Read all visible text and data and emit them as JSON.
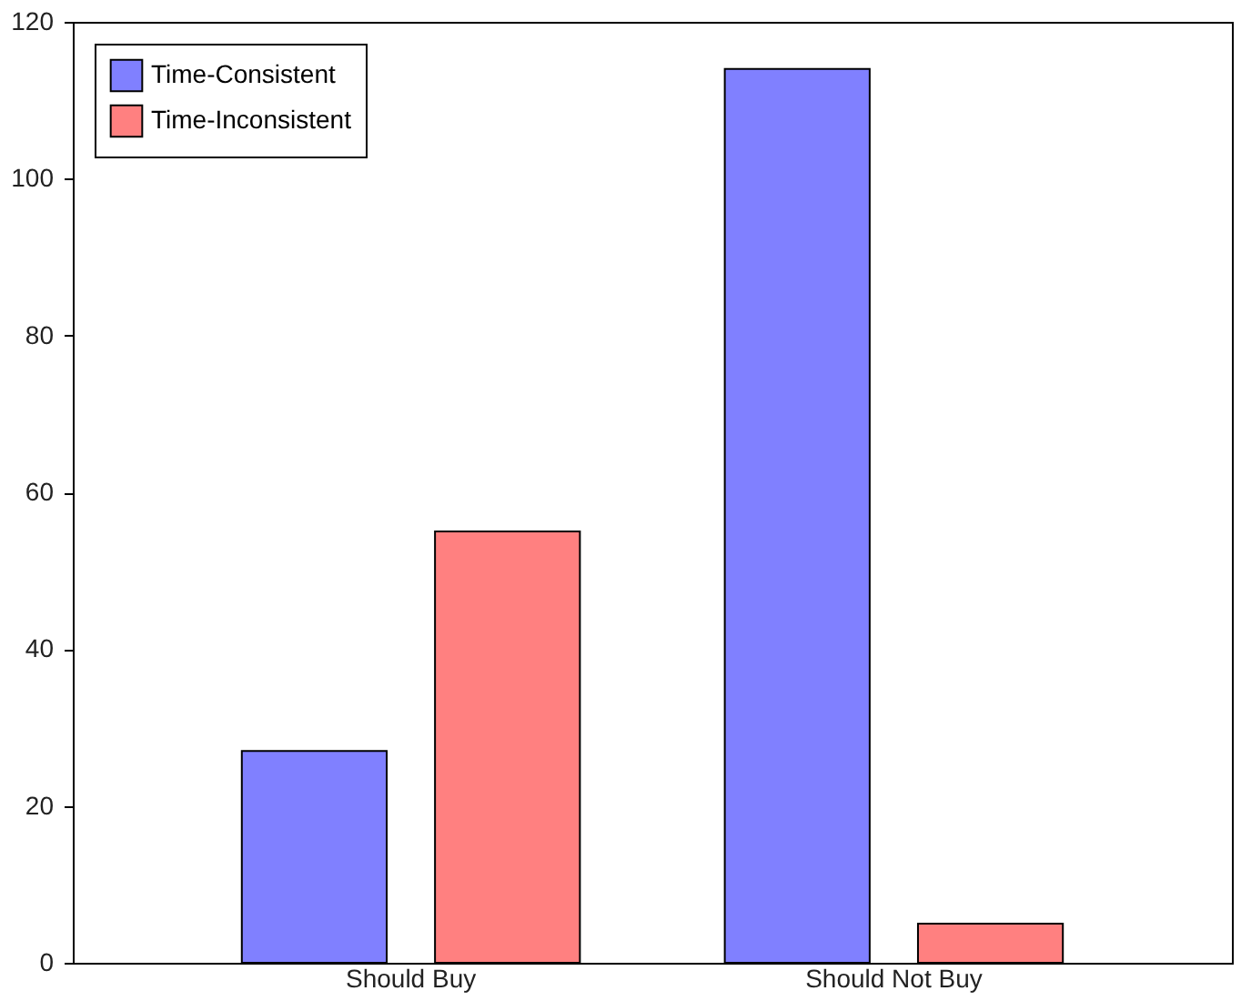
{
  "chart_data": {
    "type": "bar",
    "categories": [
      "Should Buy",
      "Should Not Buy"
    ],
    "series": [
      {
        "name": "Time-Consistent",
        "color": "#8080ff",
        "values": [
          27,
          114
        ]
      },
      {
        "name": "Time-Inconsistent",
        "color": "#ff8080",
        "values": [
          55,
          5
        ]
      }
    ],
    "ylim": [
      0,
      120
    ],
    "yticks": [
      0,
      20,
      40,
      60,
      80,
      100,
      120
    ],
    "grid": false,
    "legend": "top left"
  }
}
